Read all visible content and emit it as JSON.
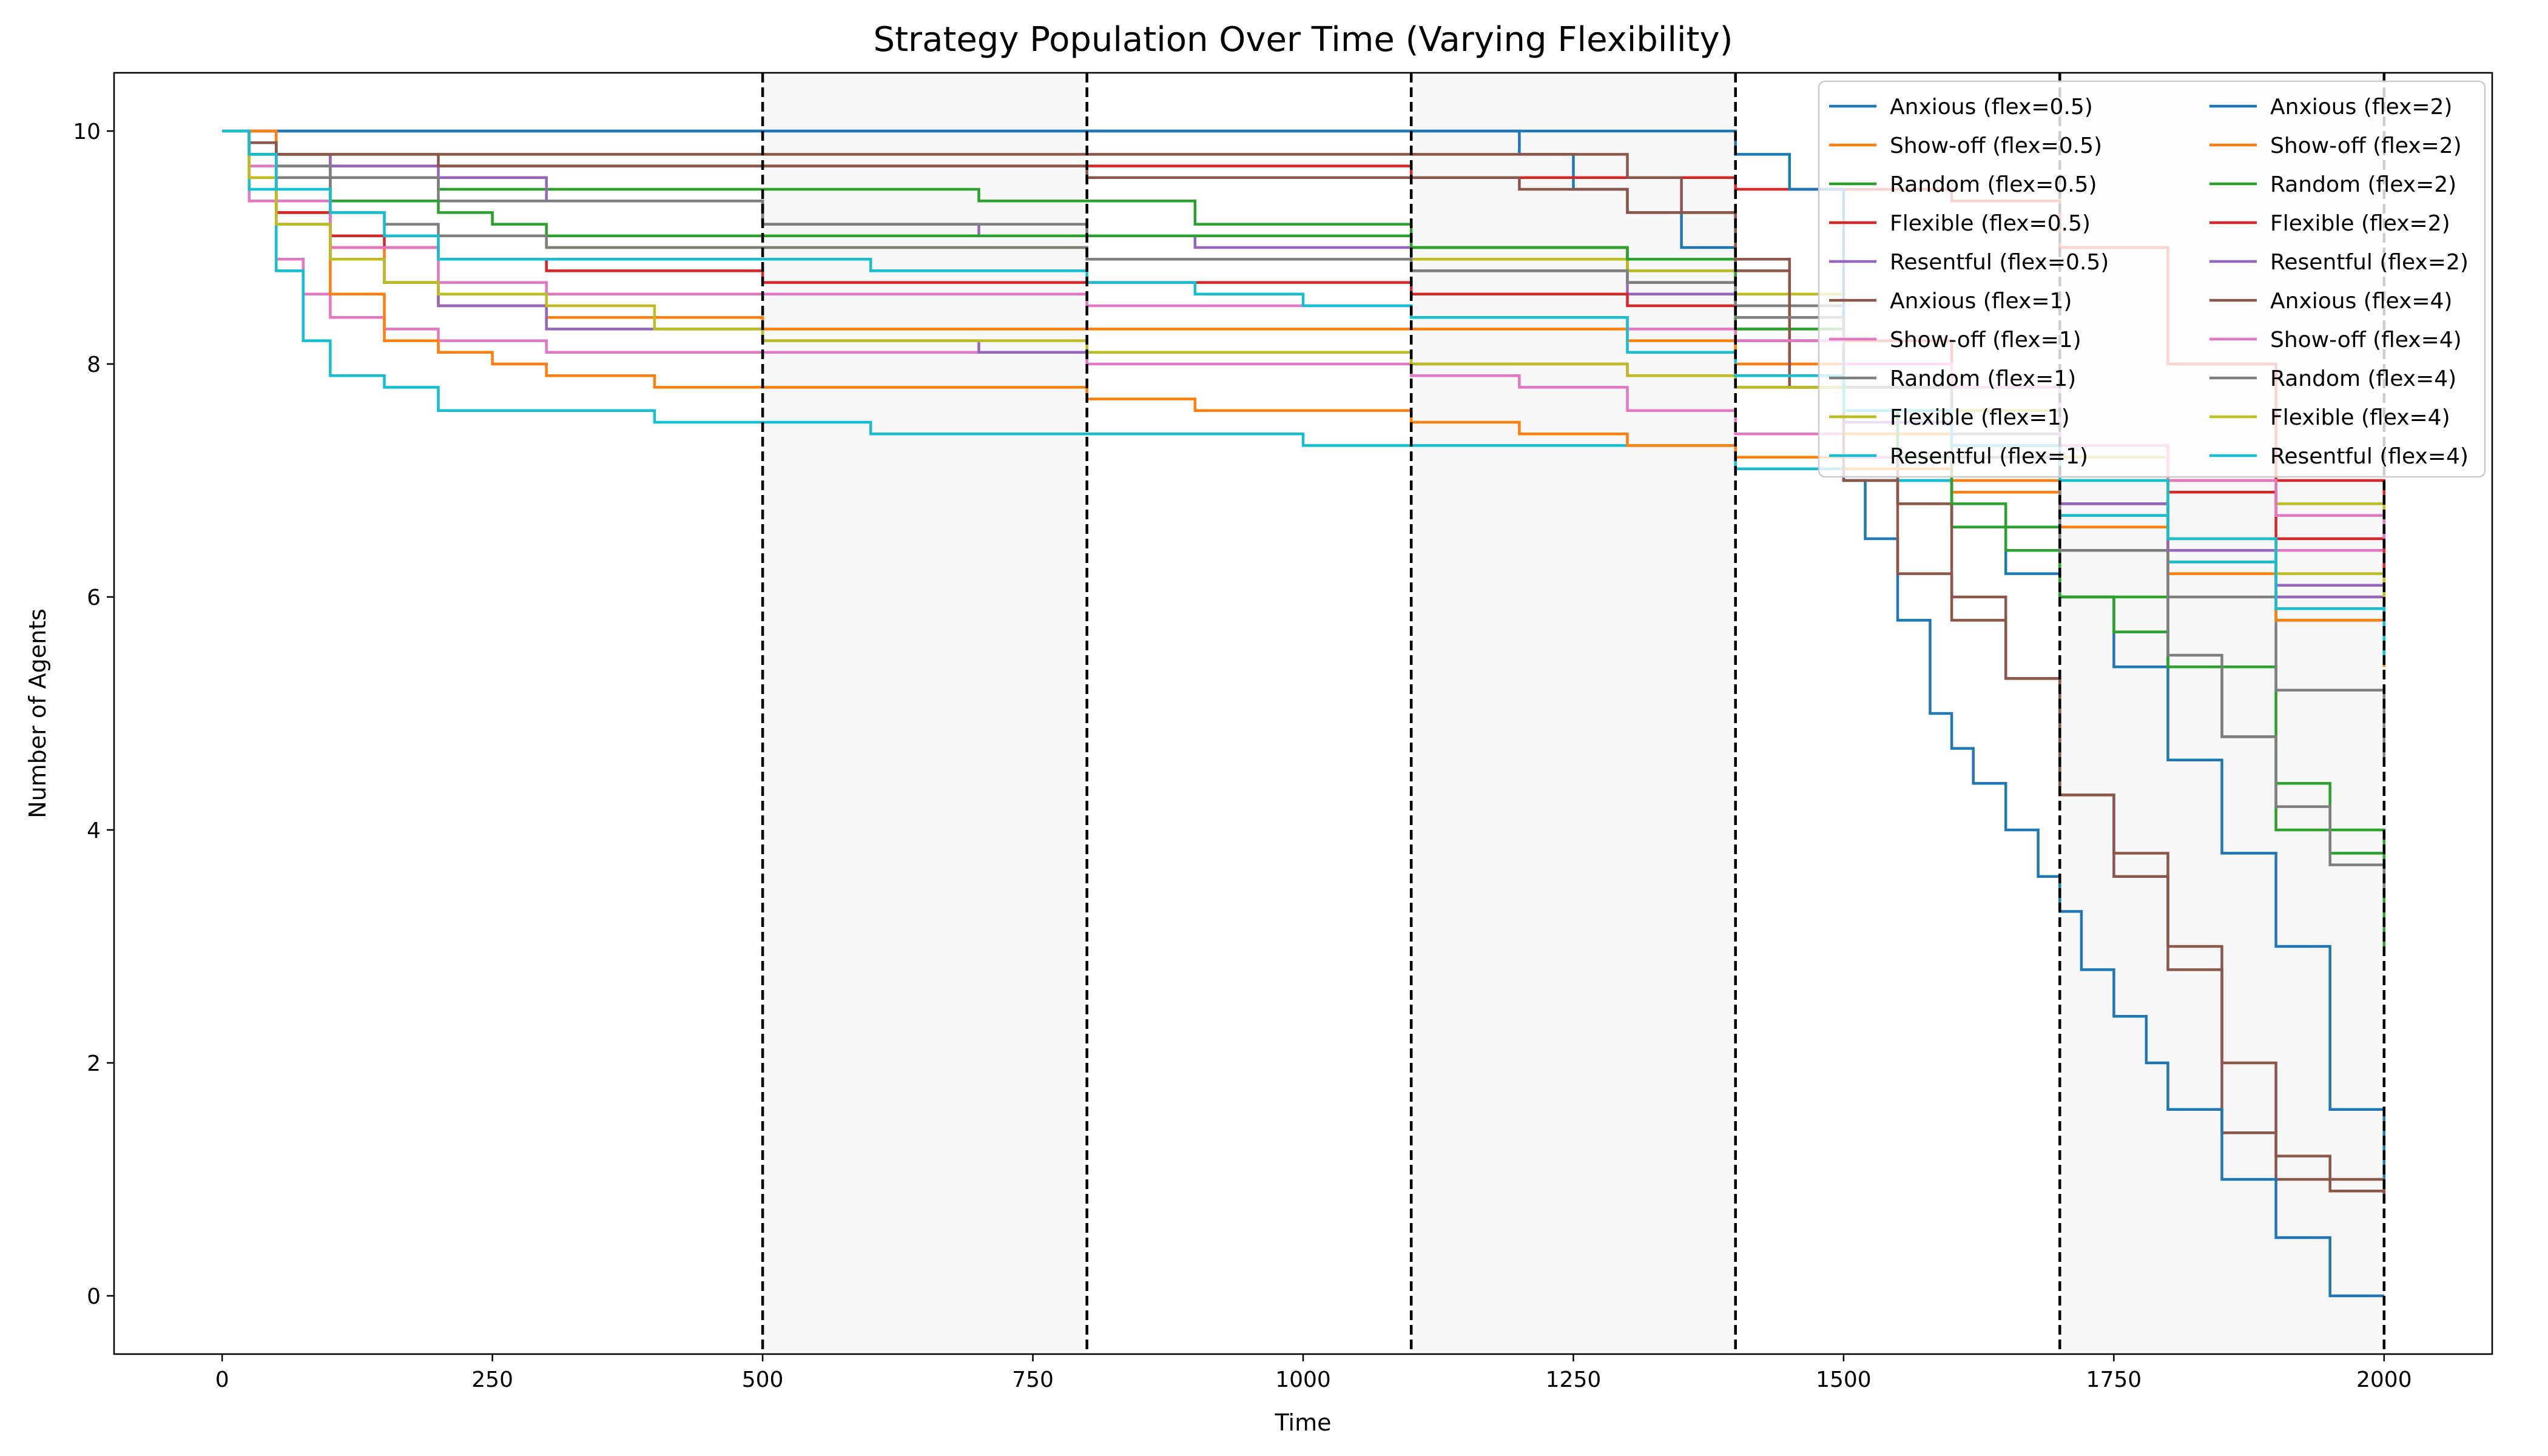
{
  "chart_data": {
    "type": "line",
    "title": "Strategy Population Over Time (Varying Flexibility)",
    "xlabel": "Time",
    "ylabel": "Number of Agents",
    "xlim": [
      -100,
      2100
    ],
    "ylim": [
      -0.5,
      10.5
    ],
    "xticks": [
      0,
      250,
      500,
      750,
      1000,
      1250,
      1500,
      1750,
      2000
    ],
    "yticks": [
      0,
      2,
      4,
      6,
      8,
      10
    ],
    "grid": false,
    "legend": "top-right, two columns",
    "shaded_regions": [
      [
        500,
        800
      ],
      [
        1100,
        1400
      ],
      [
        1700,
        2000
      ]
    ],
    "shade_color": "#f7f7f7",
    "dashed_vlines": [
      500,
      800,
      1100,
      1400,
      1700,
      2000
    ],
    "series": [
      {
        "name": "Anxious (flex=0.5)",
        "color": "#1f77b4",
        "x": [
          0,
          1150,
          1200,
          1250,
          1300,
          1350,
          1400,
          1450,
          1500,
          1550,
          1600,
          1650,
          1700,
          1750,
          1800,
          1850,
          1900,
          1950,
          2000
        ],
        "y": [
          10,
          10,
          9.8,
          9.5,
          9.3,
          9.0,
          8.6,
          8.2,
          7.6,
          7.0,
          6.6,
          6.2,
          6.0,
          5.4,
          4.6,
          3.8,
          3.0,
          1.6,
          0.8
        ]
      },
      {
        "name": "Show-off (flex=0.5)",
        "color": "#ff7f0e",
        "x": [
          0,
          25,
          50,
          100,
          150,
          200,
          300,
          500,
          800,
          1000,
          1100,
          1200,
          1300,
          1400,
          1500,
          1600,
          1700,
          1800,
          1900,
          2000
        ],
        "y": [
          10,
          9.6,
          9.3,
          9.0,
          8.7,
          8.5,
          8.4,
          8.3,
          8.3,
          8.3,
          8.3,
          8.3,
          8.2,
          8.0,
          7.4,
          7.0,
          6.6,
          6.3,
          6.0,
          5.4
        ]
      },
      {
        "name": "Random (flex=0.5)",
        "color": "#2ca02c",
        "x": [
          0,
          25,
          50,
          100,
          200,
          250,
          300,
          500,
          700,
          900,
          1100,
          1300,
          1400,
          1450,
          1500,
          1600,
          1700,
          1800,
          1900,
          2000
        ],
        "y": [
          10,
          9.9,
          9.7,
          9.6,
          9.5,
          9.5,
          9.5,
          9.5,
          9.4,
          9.2,
          9.0,
          8.7,
          8.3,
          7.8,
          7.2,
          6.6,
          6.0,
          5.4,
          4.0,
          3.0
        ]
      },
      {
        "name": "Flexible (flex=0.5)",
        "color": "#d62728",
        "x": [
          0,
          50,
          100,
          200,
          300,
          500,
          700,
          900,
          1100,
          1200,
          1300,
          1400,
          1500,
          1600,
          1700,
          1800,
          1900,
          2000
        ],
        "y": [
          10,
          9.8,
          9.7,
          9.7,
          9.7,
          9.7,
          9.7,
          9.7,
          9.6,
          9.6,
          9.6,
          9.5,
          9.5,
          9.4,
          9.0,
          8.0,
          7.0,
          6.1
        ]
      },
      {
        "name": "Resentful (flex=0.5)",
        "color": "#9467bd",
        "x": [
          0,
          25,
          50,
          100,
          200,
          300,
          500,
          700,
          900,
          1100,
          1300,
          1400,
          1500,
          1600,
          1700,
          1800,
          1900,
          2000
        ],
        "y": [
          10,
          9.9,
          9.8,
          9.7,
          9.6,
          9.4,
          9.2,
          9.1,
          9.0,
          8.8,
          8.6,
          8.2,
          7.8,
          7.3,
          6.8,
          6.4,
          6.1,
          5.8
        ]
      },
      {
        "name": "Anxious (flex=1)",
        "color": "#8c564b",
        "x": [
          0,
          25,
          50,
          100,
          200,
          500,
          800,
          1100,
          1250,
          1300,
          1350,
          1400,
          1450,
          1500,
          1550,
          1600,
          1650,
          1700,
          1750,
          1800,
          1850,
          1900,
          1950,
          2000
        ],
        "y": [
          10,
          9.9,
          9.8,
          9.8,
          9.8,
          9.8,
          9.8,
          9.8,
          9.8,
          9.6,
          9.3,
          8.9,
          8.4,
          7.6,
          6.8,
          6.0,
          5.3,
          4.3,
          3.6,
          2.8,
          1.4,
          1.0,
          0.9,
          1.0
        ]
      },
      {
        "name": "Show-off (flex=1)",
        "color": "#e377c2",
        "x": [
          0,
          25,
          50,
          75,
          100,
          150,
          200,
          300,
          500,
          800,
          1100,
          1200,
          1300,
          1400,
          1500,
          1600,
          1700,
          1800,
          1900,
          2000
        ],
        "y": [
          10,
          9.4,
          8.9,
          8.6,
          8.4,
          8.3,
          8.2,
          8.1,
          8.1,
          8.0,
          7.9,
          7.8,
          7.6,
          7.4,
          7.2,
          6.9,
          6.7,
          6.5,
          6.4,
          6.3
        ]
      },
      {
        "name": "Random (flex=1)",
        "color": "#7f7f7f",
        "x": [
          0,
          25,
          50,
          100,
          200,
          500,
          800,
          1100,
          1300,
          1400,
          1500,
          1600,
          1700,
          1800,
          1900,
          2000
        ],
        "y": [
          10,
          9.9,
          9.7,
          9.6,
          9.4,
          9.2,
          9.1,
          9.0,
          8.8,
          8.5,
          8.0,
          7.4,
          6.8,
          6.0,
          5.2,
          4.6
        ]
      },
      {
        "name": "Flexible (flex=1)",
        "color": "#bcbd22",
        "x": [
          0,
          25,
          50,
          100,
          200,
          300,
          500,
          800,
          1100,
          1300,
          1400,
          1500,
          1600,
          1700,
          1800,
          1900,
          2000
        ],
        "y": [
          10,
          9.6,
          9.3,
          9.1,
          9.1,
          9.0,
          9.0,
          8.9,
          8.9,
          8.8,
          8.6,
          8.2,
          7.6,
          7.2,
          7.0,
          6.8,
          6.7
        ]
      },
      {
        "name": "Resentful (flex=1)",
        "color": "#17becf",
        "x": [
          0,
          25,
          50,
          75,
          100,
          150,
          200,
          300,
          400,
          500,
          600,
          800,
          1000,
          1200,
          1400,
          1500,
          1600,
          1700,
          1800,
          1900,
          2000
        ],
        "y": [
          10,
          9.5,
          8.8,
          8.2,
          7.9,
          7.8,
          7.6,
          7.6,
          7.5,
          7.5,
          7.4,
          7.4,
          7.3,
          7.3,
          7.1,
          7.0,
          6.9,
          6.7,
          6.3,
          5.8,
          5.5
        ]
      },
      {
        "name": "Anxious (flex=2)",
        "color": "#1f77b4",
        "x": [
          0,
          500,
          1000,
          1300,
          1400,
          1450,
          1500,
          1520,
          1550,
          1580,
          1600,
          1620,
          1650,
          1680,
          1700,
          1720,
          1750,
          1780,
          1800,
          1850,
          1900,
          1950,
          2000
        ],
        "y": [
          10,
          10,
          10,
          10,
          9.8,
          9.5,
          7.0,
          6.5,
          5.8,
          5.0,
          4.7,
          4.4,
          4.0,
          3.6,
          3.3,
          2.8,
          2.4,
          2.0,
          1.6,
          1.0,
          0.5,
          0.0,
          0.0
        ]
      },
      {
        "name": "Show-off (flex=2)",
        "color": "#ff7f0e",
        "x": [
          0,
          50,
          100,
          150,
          200,
          250,
          300,
          400,
          500,
          700,
          800,
          900,
          1000,
          1100,
          1200,
          1300,
          1400,
          1500,
          1600,
          1700,
          1800,
          1900,
          2000
        ],
        "y": [
          10,
          9.2,
          8.6,
          8.2,
          8.1,
          8.0,
          7.9,
          7.8,
          7.8,
          7.8,
          7.7,
          7.6,
          7.6,
          7.5,
          7.4,
          7.3,
          7.2,
          7.1,
          6.9,
          6.6,
          6.2,
          5.8,
          5.6
        ]
      },
      {
        "name": "Random (flex=2)",
        "color": "#2ca02c",
        "x": [
          0,
          25,
          50,
          100,
          200,
          250,
          300,
          500,
          800,
          1100,
          1300,
          1400,
          1500,
          1550,
          1600,
          1650,
          1700,
          1750,
          1800,
          1850,
          1900,
          1950,
          2000
        ],
        "y": [
          10,
          9.8,
          9.6,
          9.4,
          9.3,
          9.2,
          9.1,
          9.1,
          9.1,
          9.0,
          8.9,
          8.3,
          7.6,
          7.2,
          6.8,
          6.4,
          6.0,
          5.7,
          5.4,
          4.8,
          4.4,
          3.8,
          3.4
        ]
      },
      {
        "name": "Flexible (flex=2)",
        "color": "#d62728",
        "x": [
          0,
          25,
          50,
          100,
          150,
          200,
          300,
          500,
          800,
          1100,
          1300,
          1400,
          1500,
          1600,
          1700,
          1800,
          1900,
          2000
        ],
        "y": [
          10,
          9.6,
          9.3,
          9.1,
          9.0,
          8.9,
          8.8,
          8.7,
          8.7,
          8.6,
          8.5,
          8.4,
          8.2,
          7.8,
          7.3,
          6.9,
          6.5,
          6.2
        ]
      },
      {
        "name": "Resentful (flex=2)",
        "color": "#9467bd",
        "x": [
          0,
          25,
          50,
          100,
          150,
          200,
          300,
          500,
          700,
          800,
          1100,
          1300,
          1400,
          1500,
          1600,
          1700,
          1800,
          1900,
          2000
        ],
        "y": [
          10,
          9.6,
          9.2,
          8.9,
          8.7,
          8.5,
          8.3,
          8.2,
          8.1,
          8.1,
          8.0,
          7.9,
          7.8,
          7.5,
          7.2,
          6.8,
          6.4,
          6.0,
          5.9
        ]
      },
      {
        "name": "Anxious (flex=4)",
        "color": "#8c564b",
        "x": [
          0,
          25,
          50,
          100,
          200,
          300,
          500,
          800,
          1100,
          1200,
          1300,
          1400,
          1450,
          1500,
          1550,
          1600,
          1650,
          1700,
          1750,
          1800,
          1850,
          1900,
          1950,
          2000
        ],
        "y": [
          10,
          9.9,
          9.8,
          9.8,
          9.7,
          9.7,
          9.7,
          9.6,
          9.6,
          9.5,
          9.3,
          8.8,
          7.8,
          7.0,
          6.2,
          5.8,
          5.3,
          4.3,
          3.8,
          3.0,
          2.0,
          1.2,
          1.0,
          0.8
        ]
      },
      {
        "name": "Show-off (flex=4)",
        "color": "#e377c2",
        "x": [
          0,
          25,
          50,
          100,
          200,
          300,
          500,
          800,
          1100,
          1300,
          1400,
          1500,
          1600,
          1700,
          1800,
          1900,
          2000
        ],
        "y": [
          10,
          9.7,
          9.4,
          9.0,
          8.7,
          8.6,
          8.6,
          8.5,
          8.4,
          8.3,
          8.2,
          8.0,
          7.8,
          7.3,
          7.0,
          6.7,
          6.5
        ]
      },
      {
        "name": "Random (flex=4)",
        "color": "#7f7f7f",
        "x": [
          0,
          25,
          50,
          100,
          150,
          200,
          300,
          500,
          800,
          1100,
          1300,
          1400,
          1500,
          1600,
          1700,
          1800,
          1850,
          1900,
          1950,
          2000
        ],
        "y": [
          10,
          9.8,
          9.6,
          9.3,
          9.2,
          9.1,
          9.0,
          9.0,
          8.9,
          8.8,
          8.7,
          8.4,
          7.8,
          7.2,
          6.4,
          5.5,
          4.8,
          4.2,
          3.7,
          3.5
        ]
      },
      {
        "name": "Flexible (flex=4)",
        "color": "#bcbd22",
        "x": [
          0,
          25,
          50,
          100,
          150,
          200,
          300,
          400,
          500,
          600,
          700,
          800,
          1100,
          1300,
          1400,
          1500,
          1600,
          1700,
          1800,
          1900,
          2000
        ],
        "y": [
          10,
          9.6,
          9.2,
          8.9,
          8.7,
          8.6,
          8.5,
          8.3,
          8.2,
          8.2,
          8.2,
          8.1,
          8.0,
          7.9,
          7.8,
          7.6,
          7.3,
          7.0,
          6.5,
          6.2,
          6.0
        ]
      },
      {
        "name": "Resentful (flex=4)",
        "color": "#17becf",
        "x": [
          0,
          25,
          50,
          100,
          150,
          200,
          300,
          500,
          600,
          700,
          800,
          900,
          1000,
          1100,
          1300,
          1400,
          1500,
          1600,
          1700,
          1800,
          1900,
          2000
        ],
        "y": [
          10,
          9.8,
          9.5,
          9.3,
          9.1,
          8.9,
          8.9,
          8.9,
          8.8,
          8.8,
          8.7,
          8.6,
          8.5,
          8.4,
          8.1,
          7.9,
          7.6,
          7.3,
          7.0,
          6.5,
          5.9,
          5.5
        ]
      }
    ]
  }
}
